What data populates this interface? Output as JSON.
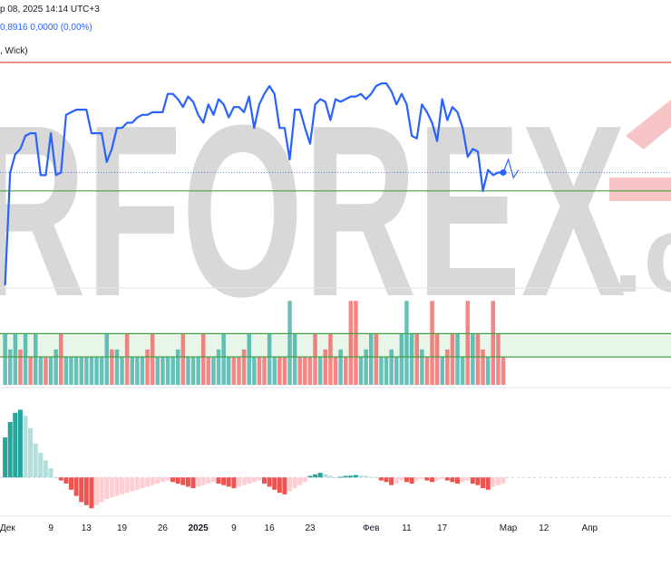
{
  "header": {
    "date_text": "р 08, 2025 14:14 UTC+3",
    "values_text": "0,8916  0,0000 (0,00%)",
    "study_text": ", Wick)"
  },
  "watermark": {
    "text": "RFOREX",
    "suffix": ".c"
  },
  "colors": {
    "price_line": "#2962ff",
    "resistance": "#e53935",
    "support": "#43a047",
    "bull": "#26a69a",
    "bear": "#ef5350",
    "bull_light": "#b2dfdb",
    "bear_light": "#ffcdd2",
    "zone_fill": "#e8f5e9",
    "watermark": "#d8d8d8",
    "watermark_accent": "#f7c5c5"
  },
  "chart_data": [
    {
      "type": "line",
      "name": "price",
      "x": [
        0,
        1,
        2,
        3,
        4,
        5,
        6,
        7,
        8,
        9,
        10,
        11,
        12,
        13,
        14,
        15,
        16,
        17,
        18,
        19,
        20,
        21,
        22,
        23,
        24,
        25,
        26,
        27,
        28,
        29,
        30,
        31,
        32,
        33,
        34,
        35,
        36,
        37,
        38,
        39,
        40,
        41,
        42,
        43,
        44,
        45,
        46,
        47,
        48,
        49,
        50,
        51,
        52,
        53,
        54,
        55,
        56,
        57,
        58,
        59,
        60,
        61,
        62,
        63,
        64,
        65,
        66,
        67,
        68,
        69,
        70,
        71,
        72,
        73,
        74,
        75,
        76,
        77,
        78,
        79,
        80,
        81,
        82,
        83,
        84,
        85,
        86,
        87,
        88,
        89,
        90,
        91,
        92,
        93,
        94,
        95,
        96,
        97,
        98
      ],
      "values": [
        0.86,
        0.903,
        0.91,
        0.912,
        0.917,
        0.918,
        0.918,
        0.902,
        0.902,
        0.918,
        0.902,
        0.903,
        0.925,
        0.926,
        0.927,
        0.927,
        0.927,
        0.918,
        0.918,
        0.918,
        0.907,
        0.912,
        0.92,
        0.92,
        0.922,
        0.922,
        0.924,
        0.925,
        0.925,
        0.926,
        0.926,
        0.926,
        0.933,
        0.933,
        0.931,
        0.928,
        0.932,
        0.93,
        0.925,
        0.922,
        0.929,
        0.925,
        0.931,
        0.929,
        0.924,
        0.928,
        0.928,
        0.926,
        0.932,
        0.92,
        0.929,
        0.933,
        0.936,
        0.933,
        0.92,
        0.92,
        0.908,
        0.927,
        0.927,
        0.92,
        0.914,
        0.929,
        0.931,
        0.93,
        0.923,
        0.931,
        0.93,
        0.931,
        0.932,
        0.932,
        0.933,
        0.931,
        0.933,
        0.936,
        0.937,
        0.937,
        0.934,
        0.929,
        0.933,
        0.929,
        0.917,
        0.916,
        0.929,
        0.926,
        0.922,
        0.915,
        0.931,
        0.923,
        0.928,
        0.926,
        0.92,
        0.909,
        0.912,
        0.911,
        0.896,
        0.904,
        0.902,
        0.903,
        0.903
      ],
      "projection": {
        "x": [
          98,
          99,
          100,
          101
        ],
        "values": [
          0.903,
          0.908,
          0.901,
          0.904
        ]
      },
      "resistance": 0.945,
      "support": 0.896,
      "ylim": [
        0.86,
        0.955
      ]
    },
    {
      "type": "bar",
      "name": "volume",
      "x": [
        0,
        1,
        2,
        3,
        4,
        5,
        6,
        7,
        8,
        9,
        10,
        11,
        12,
        13,
        14,
        15,
        16,
        17,
        18,
        19,
        20,
        21,
        22,
        23,
        24,
        25,
        26,
        27,
        28,
        29,
        30,
        31,
        32,
        33,
        34,
        35,
        36,
        37,
        38,
        39,
        40,
        41,
        42,
        43,
        44,
        45,
        46,
        47,
        48,
        49,
        50,
        51,
        52,
        53,
        54,
        55,
        56,
        57,
        58,
        59,
        60,
        61,
        62,
        63,
        64,
        65,
        66,
        67,
        68,
        69,
        70,
        71,
        72,
        73,
        74,
        75,
        76,
        77,
        78,
        79,
        80,
        81,
        82,
        83,
        84,
        85,
        86,
        87,
        88,
        89,
        90,
        91,
        92,
        93,
        94,
        95,
        96,
        97,
        98
      ],
      "values": [
        55,
        38,
        55,
        38,
        55,
        30,
        55,
        30,
        30,
        30,
        38,
        55,
        30,
        30,
        30,
        30,
        30,
        30,
        30,
        30,
        55,
        38,
        38,
        30,
        55,
        30,
        30,
        30,
        38,
        55,
        30,
        30,
        30,
        30,
        38,
        55,
        30,
        30,
        30,
        55,
        30,
        30,
        38,
        55,
        30,
        30,
        30,
        38,
        55,
        30,
        30,
        30,
        55,
        30,
        30,
        30,
        90,
        55,
        30,
        30,
        30,
        55,
        30,
        38,
        55,
        30,
        38,
        30,
        90,
        90,
        30,
        38,
        55,
        55,
        30,
        30,
        38,
        30,
        55,
        90,
        55,
        55,
        38,
        30,
        90,
        55,
        30,
        38,
        55,
        55,
        30,
        90,
        55,
        55,
        38,
        30,
        90,
        55,
        30
      ],
      "directions": [
        1,
        1,
        1,
        0,
        1,
        0,
        1,
        1,
        0,
        1,
        1,
        0,
        1,
        1,
        1,
        1,
        1,
        1,
        1,
        1,
        1,
        0,
        1,
        1,
        0,
        1,
        1,
        1,
        0,
        0,
        1,
        1,
        1,
        1,
        1,
        0,
        1,
        1,
        1,
        0,
        0,
        1,
        1,
        1,
        1,
        0,
        0,
        0,
        1,
        1,
        0,
        0,
        1,
        1,
        0,
        0,
        1,
        1,
        0,
        0,
        0,
        0,
        1,
        0,
        0,
        0,
        1,
        0,
        0,
        0,
        1,
        1,
        1,
        0,
        1,
        1,
        1,
        1,
        1,
        1,
        1,
        0,
        1,
        0,
        0,
        0,
        1,
        0,
        0,
        1,
        1,
        0,
        1,
        0,
        0,
        1,
        0,
        0,
        0
      ],
      "zone": [
        30,
        55
      ],
      "ylim": [
        0,
        100
      ]
    },
    {
      "type": "bar",
      "name": "histogram",
      "x": [
        0,
        1,
        2,
        3,
        4,
        5,
        6,
        7,
        8,
        9,
        10,
        11,
        12,
        13,
        14,
        15,
        16,
        17,
        18,
        19,
        20,
        21,
        22,
        23,
        24,
        25,
        26,
        27,
        28,
        29,
        30,
        31,
        32,
        33,
        34,
        35,
        36,
        37,
        38,
        39,
        40,
        41,
        42,
        43,
        44,
        45,
        46,
        47,
        48,
        49,
        50,
        51,
        52,
        53,
        54,
        55,
        56,
        57,
        58,
        59,
        60,
        61,
        62,
        63,
        64,
        65,
        66,
        67,
        68,
        69,
        70,
        71,
        72,
        73,
        74,
        75,
        76,
        77,
        78,
        79,
        80,
        81,
        82,
        83,
        84,
        85,
        86,
        87,
        88,
        89,
        90,
        91,
        92,
        93,
        94,
        95,
        96,
        97,
        98
      ],
      "values": [
        1.3,
        1.8,
        2.1,
        2.2,
        2.0,
        1.6,
        1.1,
        0.8,
        0.55,
        0.3,
        0.0,
        -0.1,
        -0.2,
        -0.4,
        -0.6,
        -0.8,
        -0.9,
        -1.0,
        -0.9,
        -0.8,
        -0.7,
        -0.65,
        -0.6,
        -0.55,
        -0.5,
        -0.45,
        -0.4,
        -0.35,
        -0.3,
        -0.25,
        -0.2,
        -0.15,
        -0.1,
        -0.15,
        -0.2,
        -0.25,
        -0.3,
        -0.35,
        -0.3,
        -0.25,
        -0.2,
        -0.15,
        -0.2,
        -0.25,
        -0.3,
        -0.35,
        -0.3,
        -0.25,
        -0.2,
        -0.15,
        -0.1,
        -0.2,
        -0.3,
        -0.4,
        -0.5,
        -0.55,
        -0.45,
        -0.35,
        -0.25,
        -0.15,
        0.05,
        0.1,
        0.15,
        0.1,
        0.05,
        0.0,
        0.02,
        0.05,
        0.06,
        0.08,
        0.06,
        0.05,
        0.02,
        0.0,
        -0.1,
        -0.15,
        -0.25,
        -0.2,
        -0.1,
        -0.15,
        -0.2,
        -0.1,
        -0.05,
        -0.1,
        -0.15,
        -0.1,
        -0.05,
        -0.1,
        -0.15,
        -0.2,
        -0.15,
        -0.1,
        -0.2,
        -0.25,
        -0.35,
        -0.4,
        -0.3,
        -0.25,
        -0.2
      ],
      "ylim": [
        -1.2,
        2.8
      ]
    }
  ],
  "x_axis": {
    "ticks": [
      {
        "x": 0.5,
        "label": "Дек",
        "bold": false
      },
      {
        "x": 9,
        "label": "9",
        "bold": false
      },
      {
        "x": 16,
        "label": "13",
        "bold": false
      },
      {
        "x": 23,
        "label": "19",
        "bold": false
      },
      {
        "x": 31,
        "label": "26",
        "bold": false
      },
      {
        "x": 38,
        "label": "2025",
        "bold": true
      },
      {
        "x": 45,
        "label": "9",
        "bold": false
      },
      {
        "x": 52,
        "label": "16",
        "bold": false
      },
      {
        "x": 60,
        "label": "23",
        "bold": false
      },
      {
        "x": 72,
        "label": "Фев",
        "bold": false
      },
      {
        "x": 79,
        "label": "11",
        "bold": false
      },
      {
        "x": 86,
        "label": "17",
        "bold": false
      },
      {
        "x": 99,
        "label": "Мар",
        "bold": false
      },
      {
        "x": 106,
        "label": "12",
        "bold": false
      },
      {
        "x": 115,
        "label": "Апр",
        "bold": false
      }
    ],
    "range": [
      -1,
      131
    ]
  }
}
